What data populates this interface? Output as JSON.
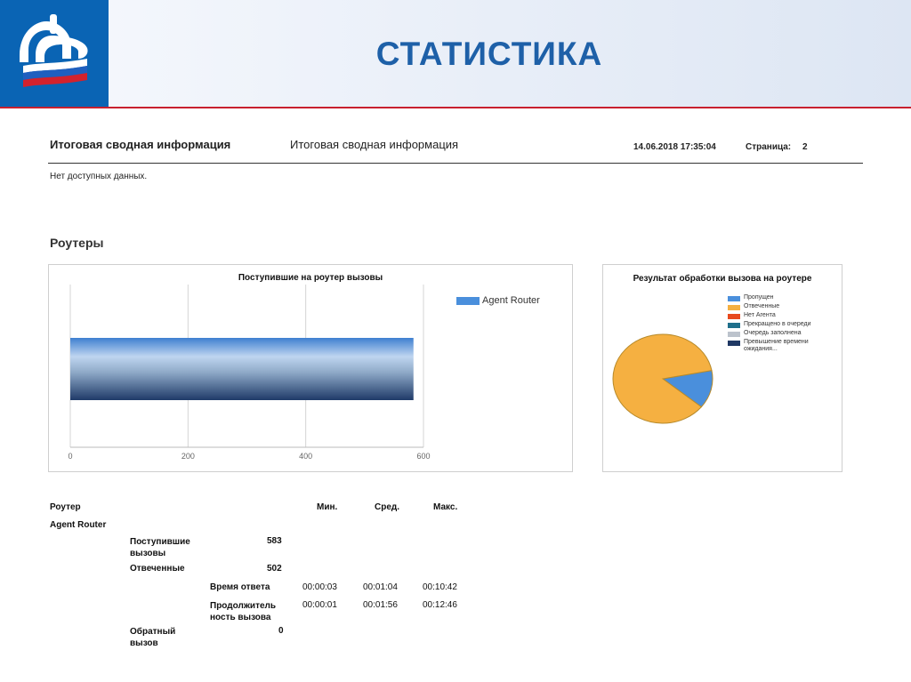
{
  "slide": {
    "title": "СТАТИСТИКА"
  },
  "report_header": {
    "title_bold": "Итоговая сводная информация",
    "title_regular": "Итоговая сводная информация",
    "datetime": "14.06.2018 17:35:04",
    "page_label": "Страница:",
    "page_number": "2"
  },
  "no_data_text": "Нет доступных данных.",
  "section_title": "Роутеры",
  "chart_data": [
    {
      "type": "bar",
      "orientation": "horizontal",
      "title": "Поступившие на роутер вызовы",
      "categories": [
        ""
      ],
      "series": [
        {
          "name": "Agent Router",
          "values": [
            583
          ],
          "color": "#4a8fdc"
        }
      ],
      "xlim": [
        0,
        600
      ],
      "xticks": [
        "0",
        "200",
        "400",
        "600"
      ],
      "grid": true,
      "legend_position": "right"
    },
    {
      "type": "pie",
      "title": "Результат обработки вызова на роутере",
      "labels": [
        "Пропущен",
        "Отвеченные",
        "Нет Агента",
        "Прекращено в очереди",
        "Очередь заполнена",
        "Превышение времени ожидания..."
      ],
      "values": [
        81,
        502,
        0,
        0,
        0,
        0
      ],
      "colors": [
        "#4a8fdc",
        "#f5b041",
        "#e8491d",
        "#1f6f8b",
        "#bcc3cc",
        "#1f3864"
      ],
      "legend_position": "right"
    }
  ],
  "table": {
    "headers": {
      "router": "Роутер",
      "min": "Мин.",
      "avg": "Сред.",
      "max": "Макс."
    },
    "router_name": "Agent Router",
    "incoming_label": "Поступившие вызовы",
    "incoming_value": "583",
    "answered_label": "Отвеченные",
    "answered_value": "502",
    "response_time_label": "Время ответа",
    "response_time": {
      "min": "00:00:03",
      "avg": "00:01:04",
      "max": "00:10:42"
    },
    "duration_label": "Продолжитель ность вызова",
    "duration": {
      "min": "00:00:01",
      "avg": "00:01:56",
      "max": "00:12:46"
    },
    "callback_label": "Обратный вызов",
    "callback_value": "0"
  }
}
